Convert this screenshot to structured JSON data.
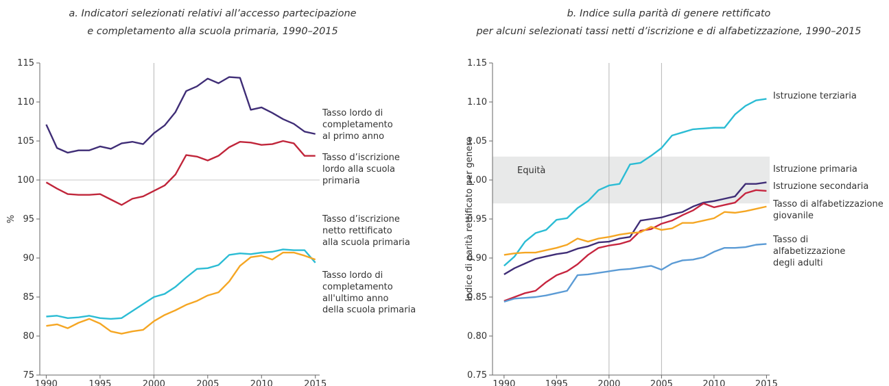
{
  "chart_data": [
    {
      "type": "line",
      "title": [
        "a. Indicatori selezionati relativi all’accesso partecipazione",
        "e completamento alla scuola primaria, 1990–2015"
      ],
      "y_label": "%",
      "x": [
        1990,
        1991,
        1992,
        1993,
        1994,
        1995,
        1996,
        1997,
        1998,
        1999,
        2000,
        2001,
        2002,
        2003,
        2004,
        2005,
        2006,
        2007,
        2008,
        2009,
        2010,
        2011,
        2012,
        2013,
        2014,
        2015
      ],
      "xlim": [
        1989.4,
        2015.4
      ],
      "xticks": [
        1990,
        1995,
        2000,
        2005,
        2010,
        2015
      ],
      "ylim": [
        75,
        115
      ],
      "yticks": [
        75,
        80,
        85,
        90,
        95,
        100,
        105,
        110,
        115
      ],
      "ref_x": [
        2000
      ],
      "ref_y": [
        100
      ],
      "series": [
        {
          "name": "Tasso lordo di\ncompletamento\nal primo anno",
          "color": "#3f2d76",
          "values": [
            107.1,
            104.1,
            103.5,
            103.8,
            103.8,
            104.3,
            104.0,
            104.7,
            104.9,
            104.6,
            106.0,
            107.0,
            108.7,
            111.4,
            112.0,
            113.0,
            112.4,
            113.2,
            113.1,
            109.0,
            109.3,
            108.6,
            107.8,
            107.2,
            106.2,
            105.9
          ]
        },
        {
          "name": "Tasso d’iscrizione\nlordo alla scuola\nprimaria",
          "color": "#c0253a",
          "values": [
            99.7,
            98.9,
            98.2,
            98.1,
            98.1,
            98.2,
            97.5,
            96.8,
            97.6,
            97.9,
            98.6,
            99.3,
            100.7,
            103.2,
            103.0,
            102.5,
            103.1,
            104.2,
            104.9,
            104.8,
            104.5,
            104.6,
            105.0,
            104.7,
            103.1,
            103.1
          ]
        },
        {
          "name": "Tasso d’iscrizione\nnetto rettificato\nalla scuola primaria",
          "color": "#2bbcd4",
          "values": [
            82.5,
            82.6,
            82.3,
            82.4,
            82.6,
            82.3,
            82.2,
            82.3,
            83.2,
            84.1,
            85.0,
            85.4,
            86.3,
            87.5,
            88.6,
            88.7,
            89.1,
            90.4,
            90.6,
            90.5,
            90.7,
            90.8,
            91.1,
            91.0,
            91.0,
            89.4
          ]
        },
        {
          "name": "Tasso lordo di\ncompletamento\nall'ultimo anno\ndella scuola primaria",
          "color": "#f5a623",
          "values": [
            81.3,
            81.5,
            81.0,
            81.7,
            82.2,
            81.6,
            80.6,
            80.3,
            80.6,
            80.8,
            81.9,
            82.7,
            83.3,
            84.0,
            84.5,
            85.2,
            85.6,
            87.0,
            89.0,
            90.1,
            90.3,
            89.8,
            90.7,
            90.7,
            90.3,
            89.8
          ]
        }
      ]
    },
    {
      "type": "line",
      "title": [
        "b. Indice sulla parità di genere rettificato",
        "per alcuni selezionati tassi netti d’iscrizione e di alfabetizzazione, 1990–2015"
      ],
      "y_label": "Indice di parità rettificato per genere",
      "x": [
        1990,
        1991,
        1992,
        1993,
        1994,
        1995,
        1996,
        1997,
        1998,
        1999,
        2000,
        2001,
        2002,
        2003,
        2004,
        2005,
        2006,
        2007,
        2008,
        2009,
        2010,
        2011,
        2012,
        2013,
        2014,
        2015
      ],
      "xlim": [
        1988.9,
        2015.3
      ],
      "xticks": [
        1990,
        1995,
        2000,
        2005,
        2010,
        2015
      ],
      "ylim": [
        0.75,
        1.15
      ],
      "yticks": [
        {
          "value": 0.75,
          "label": "0.75"
        },
        {
          "value": 0.8,
          "label": "0.80"
        },
        {
          "value": 0.85,
          "label": "0.85"
        },
        {
          "value": 0.9,
          "label": "0.90"
        },
        {
          "value": 0.95,
          "label": "0.95"
        },
        {
          "value": 1,
          "label": "1.00"
        },
        {
          "value": 1.05,
          "label": "1.05"
        },
        {
          "value": 1.1,
          "label": "1.10"
        },
        {
          "value": 1.15,
          "label": "1.15"
        }
      ],
      "ref_x": [
        2000,
        2005
      ],
      "band": {
        "label": "Equità",
        "from": 0.97,
        "to": 1.03
      },
      "series": [
        {
          "name": "Istruzione terziaria",
          "color": "#2bbcd4",
          "values": [
            0.89,
            0.902,
            0.921,
            0.932,
            0.936,
            0.949,
            0.951,
            0.964,
            0.973,
            0.987,
            0.993,
            0.995,
            1.02,
            1.022,
            1.031,
            1.041,
            1.057,
            1.061,
            1.065,
            1.066,
            1.067,
            1.067,
            1.084,
            1.095,
            1.102,
            1.104
          ]
        },
        {
          "name": "Istruzione primaria",
          "color": "#3f2d76",
          "values": [
            0.879,
            0.887,
            0.893,
            0.899,
            0.902,
            0.905,
            0.907,
            0.912,
            0.915,
            0.92,
            0.921,
            0.925,
            0.927,
            0.948,
            0.95,
            0.952,
            0.956,
            0.959,
            0.966,
            0.971,
            0.973,
            0.976,
            0.979,
            0.995,
            0.995,
            0.997
          ]
        },
        {
          "name": "Istruzione secondaria",
          "color": "#c6253f",
          "values": [
            0.845,
            0.85,
            0.855,
            0.858,
            0.869,
            0.878,
            0.883,
            0.892,
            0.904,
            0.913,
            0.916,
            0.918,
            0.922,
            0.935,
            0.937,
            0.944,
            0.948,
            0.955,
            0.961,
            0.97,
            0.965,
            0.968,
            0.971,
            0.983,
            0.987,
            0.986
          ]
        },
        {
          "name": "Tasso di alfabetizzazione\ngiovanile",
          "color": "#f5a623",
          "values": [
            0.904,
            0.906,
            0.907,
            0.907,
            0.91,
            0.913,
            0.917,
            0.925,
            0.921,
            0.925,
            0.927,
            0.93,
            0.932,
            0.933,
            0.94,
            0.936,
            0.938,
            0.945,
            0.945,
            0.948,
            0.951,
            0.959,
            0.958,
            0.96,
            0.963,
            0.966
          ]
        },
        {
          "name": "Tasso di\nalfabetizzazione\ndegli adulti",
          "color": "#5b9bd5",
          "values": [
            0.844,
            0.848,
            0.849,
            0.85,
            0.852,
            0.855,
            0.858,
            0.878,
            0.879,
            0.881,
            0.883,
            0.885,
            0.886,
            0.888,
            0.89,
            0.885,
            0.893,
            0.897,
            0.898,
            0.901,
            0.908,
            0.913,
            0.913,
            0.914,
            0.917,
            0.918
          ]
        }
      ]
    }
  ]
}
